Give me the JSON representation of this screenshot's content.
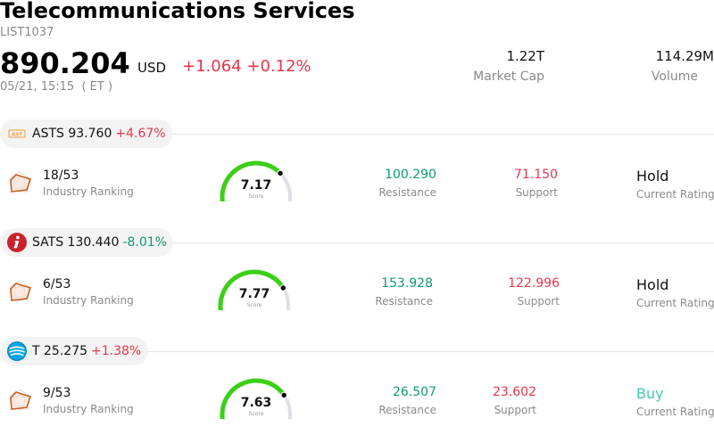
{
  "header": {
    "title": "Telecommunications Services",
    "code": "LIST1037",
    "price": "890.204",
    "currency": "USD",
    "change": "+1.064",
    "change_pct": "+0.12%",
    "timestamp": "05/21, 15:15  ( ET )",
    "market_cap_value": "1.22T",
    "market_cap_label": "Market Cap",
    "volume_value": "114.29M",
    "volume_label": "Volume"
  },
  "stocks": [
    {
      "symbol": "ASTS",
      "price": "93.760",
      "change_pct": "+4.67%",
      "direction": "up",
      "logo_icon": "ast-spacemobile-logo-icon",
      "rank": "18/53",
      "rank_label": "Industry Ranking",
      "score": "7.17",
      "score_label": "Score",
      "resistance": "100.290",
      "resistance_label": "Resistance",
      "support": "71.150",
      "support_label": "Support",
      "rating": "Hold",
      "rating_label": "Current Rating"
    },
    {
      "symbol": "SATS",
      "price": "130.440",
      "change_pct": "-8.01%",
      "direction": "down",
      "logo_icon": "echostar-logo-icon",
      "rank": "6/53",
      "rank_label": "Industry Ranking",
      "score": "7.77",
      "score_label": "Score",
      "resistance": "153.928",
      "resistance_label": "Resistance",
      "support": "122.996",
      "support_label": "Support",
      "rating": "Hold",
      "rating_label": "Current Rating"
    },
    {
      "symbol": "T",
      "price": "25.275",
      "change_pct": "+1.38%",
      "direction": "up",
      "logo_icon": "att-globe-logo-icon",
      "rank": "9/53",
      "rank_label": "Industry Ranking",
      "score": "7.63",
      "score_label": "Score",
      "resistance": "26.507",
      "resistance_label": "Resistance",
      "support": "23.602",
      "support_label": "Support",
      "rating": "Buy",
      "rating_label": "Current Rating"
    }
  ],
  "colors": {
    "up": "#e8364b",
    "down": "#0f9a74",
    "gauge_fill": "#3bd016",
    "gauge_track": "#dedee6",
    "buy": "#3cc9b5"
  }
}
